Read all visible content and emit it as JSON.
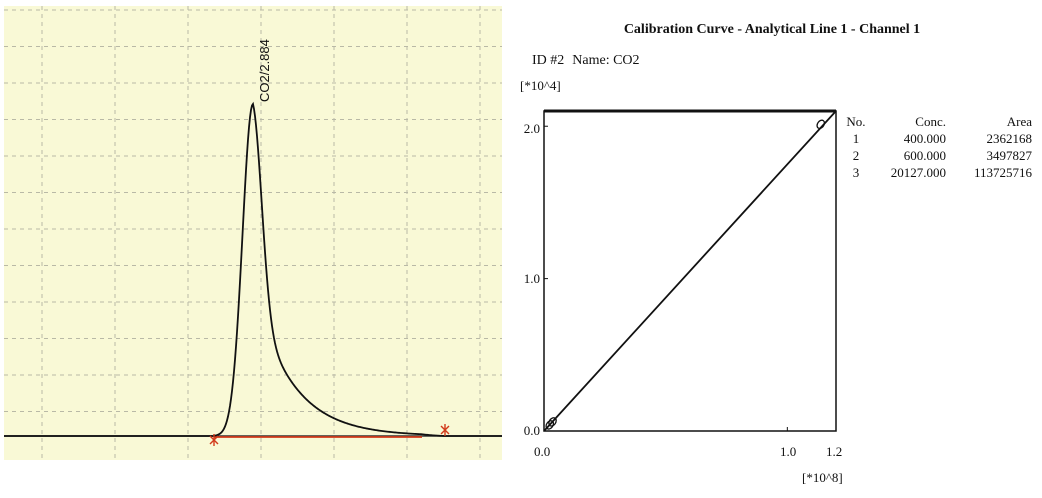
{
  "chromatogram": {
    "peak_label": "CO2/2.884"
  },
  "calibration": {
    "title": "Calibration Curve - Analytical Line 1 - Channel 1",
    "id_label": "ID #2",
    "name_label": "Name: CO2",
    "y_exponent": "[*10^4]",
    "x_exponent": "[*10^8]",
    "y_ticks": [
      "0.0",
      "1.0",
      "2.0"
    ],
    "x_ticks": [
      "0.0",
      "1.0",
      "1.2"
    ],
    "table_headers": {
      "no": "No.",
      "conc": "Conc.",
      "area": "Area"
    },
    "table_rows": [
      {
        "no": "1",
        "conc": "400.000",
        "area": "2362168"
      },
      {
        "no": "2",
        "conc": "600.000",
        "area": "3497827"
      },
      {
        "no": "3",
        "conc": "20127.000",
        "area": "113725716"
      }
    ]
  },
  "chart_data": [
    {
      "type": "line",
      "title": "",
      "series": [
        {
          "name": "CO2/2.884",
          "peak_retention": 2.884
        }
      ],
      "grid": true,
      "background": "#f9f9d6",
      "line_color": "#111111",
      "baseline_color": "#d23a1a"
    },
    {
      "type": "scatter",
      "title": "Calibration Curve - Analytical Line 1 - Channel 1",
      "x_unit_multiplier": "[*10^8]",
      "y_unit_multiplier": "[*10^4]",
      "xlim": [
        0.0,
        1.2
      ],
      "ylim": [
        0.0,
        2.1
      ],
      "points": [
        {
          "conc": 400.0,
          "area": 2362168
        },
        {
          "conc": 600.0,
          "area": 3497827
        },
        {
          "conc": 20127.0,
          "area": 113725716
        }
      ],
      "fit": "linear",
      "grid": false
    }
  ]
}
